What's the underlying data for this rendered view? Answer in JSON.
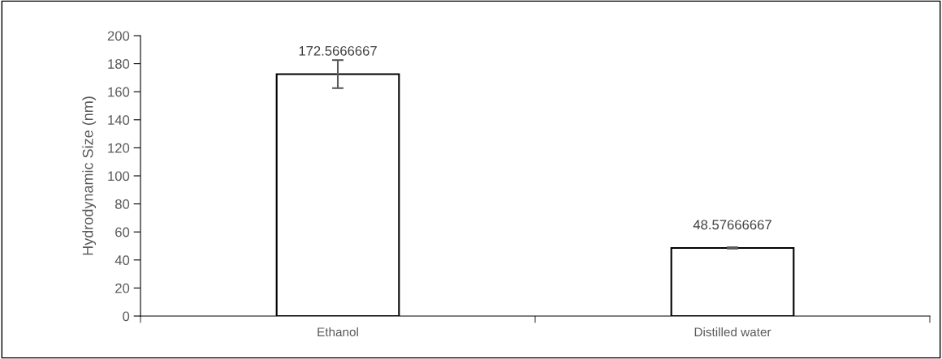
{
  "chart_data": {
    "type": "bar",
    "ylabel": "Hydrodynamic Size (nm)",
    "categories": [
      "Ethanol",
      "Distilled water"
    ],
    "values": [
      172.5666667,
      48.57666667
    ],
    "errors": [
      10,
      0.5
    ],
    "color": "#ffffff",
    "data_labels": true,
    "ylim": [
      0,
      200
    ],
    "yticks": [
      0,
      20,
      40,
      60,
      80,
      100,
      120,
      140,
      160,
      180,
      200
    ],
    "grid": false,
    "legend": false
  }
}
